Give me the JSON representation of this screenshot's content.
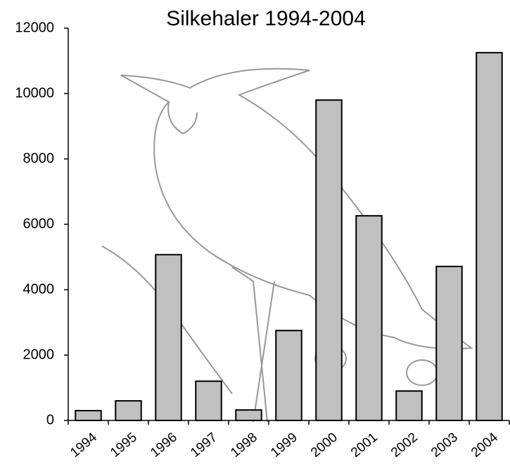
{
  "chart_data": {
    "type": "bar",
    "title": "Silkehaler 1994-2004",
    "categories": [
      "1994",
      "1995",
      "1996",
      "1997",
      "1998",
      "1999",
      "2000",
      "2001",
      "2002",
      "2003",
      "2004"
    ],
    "values": [
      300,
      600,
      5070,
      1200,
      320,
      2750,
      9800,
      6260,
      900,
      4710,
      11250
    ],
    "color": "#c0c0c0",
    "ylim": [
      0,
      12000
    ],
    "yticks": [
      0,
      2000,
      4000,
      6000,
      8000,
      10000,
      12000
    ],
    "grid": false
  }
}
